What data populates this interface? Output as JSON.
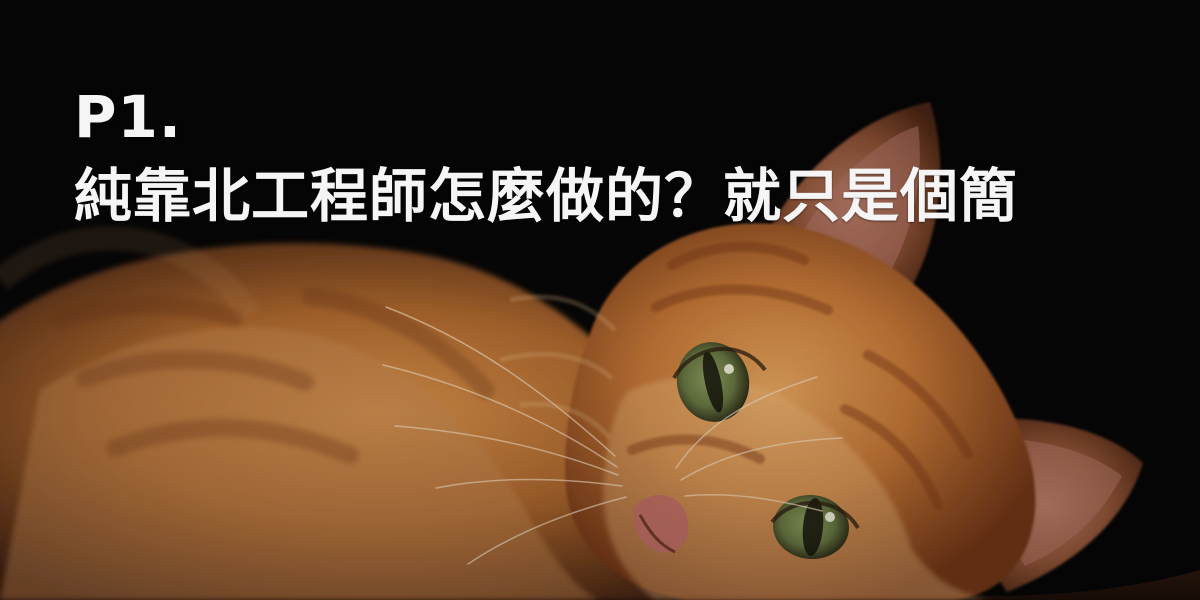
{
  "caption": {
    "label": "P1.",
    "title": "純靠北工程師怎麼做的？就只是個簡"
  },
  "photo": {
    "subject": "orange tabby kitten lying on its side"
  },
  "colors": {
    "background": "#070606",
    "text": "#f5f5f5",
    "fur_light": "#d7914a",
    "fur_mid": "#a9652d",
    "fur_dark": "#5c2e16",
    "eye": "#657440"
  }
}
